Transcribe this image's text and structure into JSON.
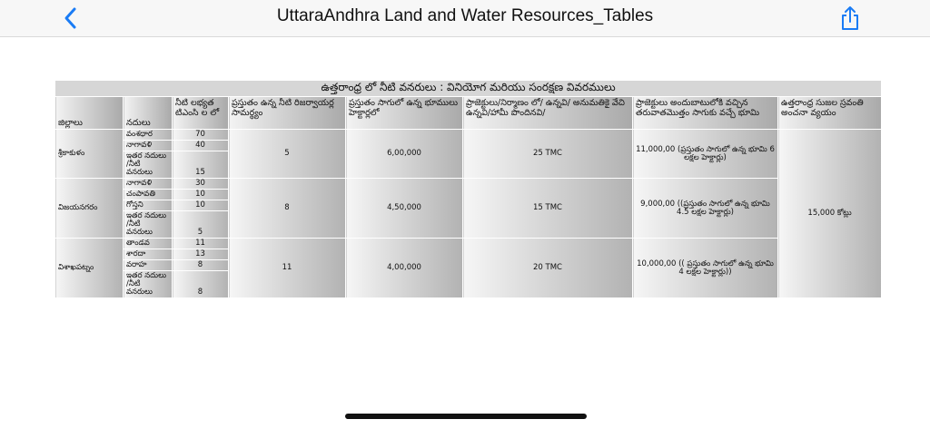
{
  "nav": {
    "title": "UttaraAndhra Land and Water Resources_Tables",
    "back_icon": "chevron-left-icon",
    "share_icon": "share-icon",
    "accent_color": "#1a7cf5"
  },
  "table": {
    "title": "ఉత్తరాంధ్ర లో నీటి వనరులు : వినియోగ మరియు సంరక్షణ వివరములు",
    "headers": {
      "district": "జిల్లాలు",
      "rivers": "నదులు",
      "availability": "నీటి లభ్యత టిఎంసి ల లో",
      "reservoir_capacity": "ప్రస్తుతం ఉన్న నీటి రిజర్వాయర్ల సామర్థ్యం",
      "current_irrigated": "ప్రస్తుతం సాగులో ఉన్న భూములు హెక్టార్లలో",
      "projects_allocated": "ప్రాజెక్టులు/నిర్మాణం లో/ ఉన్నవి/ అనుమతికై వేచి ఉన్నవి/హామీ పొందినవి/",
      "future_irrigable": "ప్రాజెక్టులు అందుబాటులోకి వచ్చిన తరువాతమొత్తం సాగుకు వచ్చే భూమి",
      "sujala_cost": "ఉత్తరాంధ్ర సుజల స్రవంతి అంచనా వ్యయం"
    },
    "districts": [
      {
        "name": "శ్రీకాకుళం",
        "rivers": [
          "వంశధార",
          "నాగావళి",
          "ఇతర నదులు /నీటి వనరులు"
        ],
        "availability": [
          "70",
          "40",
          "15"
        ],
        "reservoir_capacity": "5",
        "current_irrigated": "6,00,000",
        "projects_allocated": "25 TMC",
        "future_irrigable": "11,000,00 (ప్రస్తుతం సాగులో ఉన్న భూమి 6 లక్షల హెక్టార్లు)"
      },
      {
        "name": "విజయనగరం",
        "rivers": [
          "నాగావళి",
          "చంపావతి",
          "గోస్తని",
          "ఇతర నదులు /నీటి వనరులు"
        ],
        "availability": [
          "30",
          "10",
          "10",
          "5"
        ],
        "reservoir_capacity": "8",
        "current_irrigated": "4,50,000",
        "projects_allocated": "15 TMC",
        "future_irrigable": "9,000,00 ((ప్రస్తుతం సాగులో ఉన్న భూమి 4.5 లక్షల హెక్టార్లు)"
      },
      {
        "name": "విశాఖపట్నం",
        "rivers": [
          "తాండవ",
          "శారదా",
          "వరాహ",
          "ఇతర నదులు /నీటి వనరులు"
        ],
        "availability": [
          "11",
          "13",
          "8",
          "8"
        ],
        "reservoir_capacity": "11",
        "current_irrigated": "4,00,000",
        "projects_allocated": "20 TMC",
        "future_irrigable": "10,000,00 (( ప్రస్తుతం సాగులో ఉన్న భూమి 4 లక్షల హెక్టార్లు))"
      }
    ],
    "sujala_cost": "15,000 కోట్లు"
  }
}
